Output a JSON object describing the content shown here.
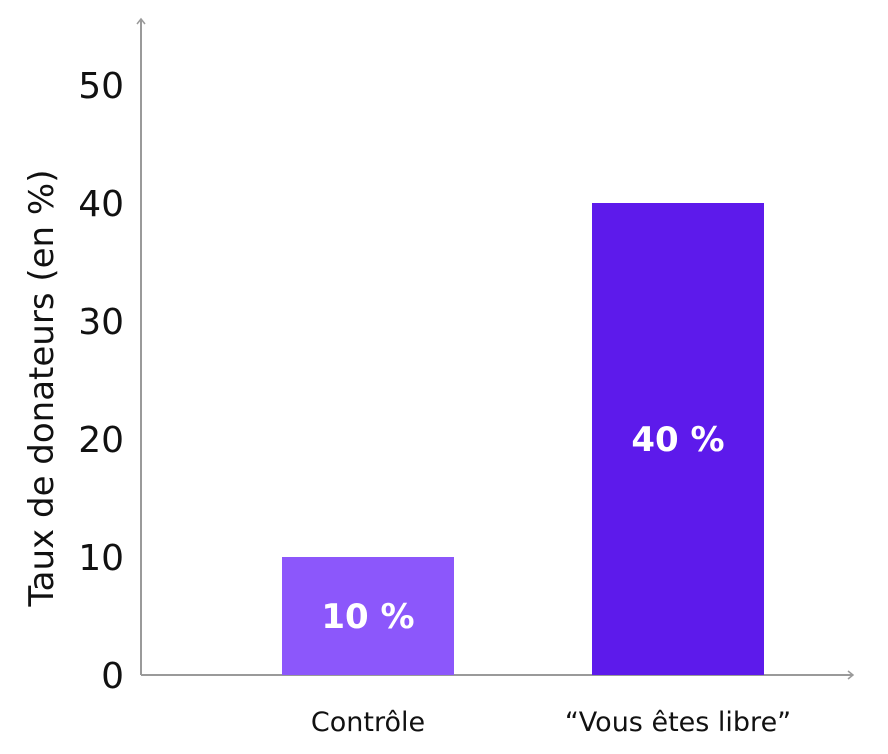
{
  "chart_data": {
    "type": "bar",
    "title": "",
    "xlabel": "",
    "ylabel": "Taux de donateurs (en %)",
    "categories": [
      "Contrôle",
      "“Vous êtes libre”"
    ],
    "values": [
      10,
      40
    ],
    "value_labels": [
      "10 %",
      "40 %"
    ],
    "bar_colors": [
      "#8c57fb",
      "#5d1aeb"
    ],
    "ylim": [
      0,
      55
    ],
    "yticks": [
      0,
      10,
      20,
      30,
      40,
      50
    ],
    "grid": false,
    "legend": "none"
  }
}
